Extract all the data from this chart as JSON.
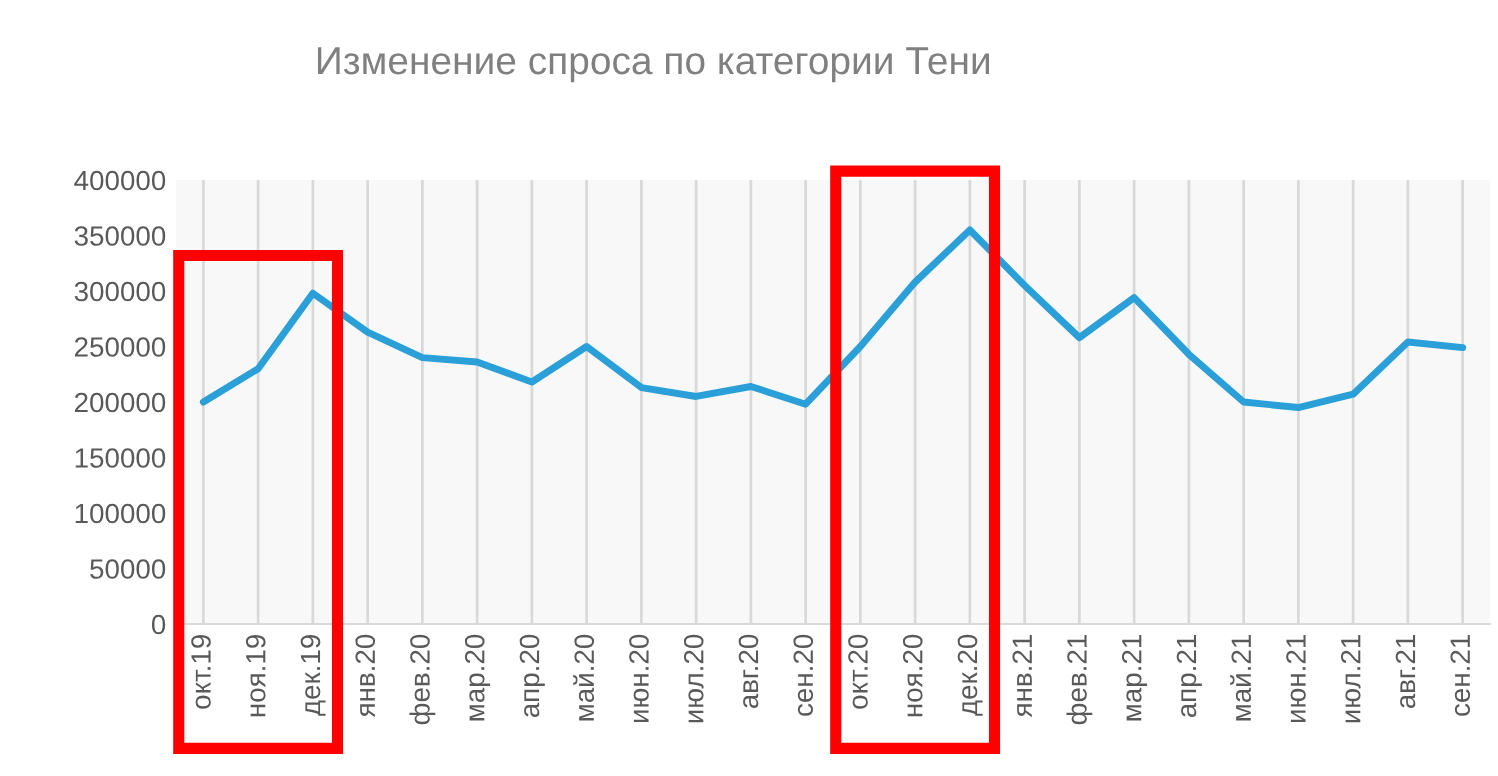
{
  "chart_data": {
    "type": "line",
    "title": "Изменение спроса по категории Тени",
    "categories": [
      "окт.19",
      "ноя.19",
      "дек.19",
      "янв.20",
      "фев.20",
      "мар.20",
      "апр.20",
      "май.20",
      "июн.20",
      "июл.20",
      "авг.20",
      "сен.20",
      "окт.20",
      "ноя.20",
      "дек.20",
      "янв.21",
      "фев.21",
      "мар.21",
      "апр.21",
      "май.21",
      "июн.21",
      "июл.21",
      "авг.21",
      "сен.21"
    ],
    "series": [
      {
        "color": "#2a9fd8",
        "values": [
          200000,
          230000,
          298000,
          263000,
          240000,
          236000,
          218000,
          250000,
          213000,
          205000,
          214000,
          198000,
          250000,
          308000,
          355000,
          305000,
          258000,
          294000,
          243000,
          200000,
          195000,
          207000,
          254000,
          249000
        ]
      }
    ],
    "ylim": [
      0,
      400000
    ],
    "yticks": [
      0,
      50000,
      100000,
      150000,
      200000,
      250000,
      300000,
      350000,
      400000
    ],
    "grid": "x",
    "legend": false,
    "marker": "none",
    "line_style": "solid"
  }
}
